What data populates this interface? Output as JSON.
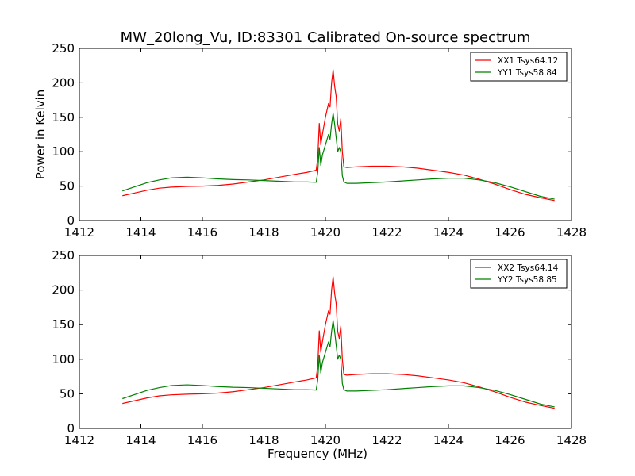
{
  "figure": {
    "title": "MW_20long_Vu, ID:83301 Calibrated On-source spectrum"
  },
  "colors": {
    "red": "#ff0000",
    "green": "#008000"
  },
  "chart_data": [
    {
      "type": "line",
      "title": "MW_20long_Vu, ID:83301 Calibrated On-source spectrum",
      "xlabel": "",
      "ylabel": "Power in Kelvin",
      "xlim": [
        1412,
        1428
      ],
      "ylim": [
        0,
        250
      ],
      "xticks": [
        "1412",
        "1414",
        "1416",
        "1418",
        "1420",
        "1422",
        "1424",
        "1426",
        "1428"
      ],
      "yticks": [
        "0",
        "50",
        "100",
        "150",
        "200",
        "250"
      ],
      "grid": false,
      "legend": "top-right",
      "series": [
        {
          "name": "XX1 Tsys64.12",
          "color": "#ff0000",
          "x": [
            1413.4,
            1413.8,
            1414.2,
            1414.6,
            1415.0,
            1415.5,
            1416.0,
            1416.5,
            1417.0,
            1417.5,
            1418.0,
            1418.5,
            1419.0,
            1419.4,
            1419.7,
            1419.75,
            1419.8,
            1419.85,
            1419.9,
            1420.0,
            1420.1,
            1420.15,
            1420.2,
            1420.25,
            1420.3,
            1420.35,
            1420.4,
            1420.45,
            1420.5,
            1420.55,
            1420.6,
            1420.7,
            1421.0,
            1421.5,
            1422.0,
            1422.5,
            1423.0,
            1423.5,
            1424.0,
            1424.5,
            1425.0,
            1425.5,
            1426.0,
            1426.5,
            1427.0,
            1427.45
          ],
          "y": [
            36,
            40,
            44,
            47,
            48.5,
            49.5,
            50,
            51,
            53,
            56,
            59,
            63,
            67,
            70,
            73,
            90,
            141,
            110,
            125,
            150,
            170,
            165,
            200,
            219,
            195,
            180,
            140,
            130,
            148,
            100,
            78,
            77,
            78,
            79,
            79,
            78,
            76,
            73,
            70,
            66,
            60,
            53,
            45,
            38,
            33,
            29
          ]
        },
        {
          "name": "YY1 Tsys58.84",
          "color": "#008000",
          "x": [
            1413.4,
            1413.8,
            1414.2,
            1414.6,
            1415.0,
            1415.5,
            1416.0,
            1416.5,
            1417.0,
            1417.5,
            1418.0,
            1418.5,
            1419.0,
            1419.4,
            1419.7,
            1419.75,
            1419.8,
            1419.85,
            1419.9,
            1420.0,
            1420.1,
            1420.15,
            1420.2,
            1420.25,
            1420.3,
            1420.35,
            1420.4,
            1420.45,
            1420.5,
            1420.55,
            1420.6,
            1420.7,
            1421.0,
            1421.5,
            1422.0,
            1422.5,
            1423.0,
            1423.5,
            1424.0,
            1424.5,
            1425.0,
            1425.5,
            1426.0,
            1426.5,
            1427.0,
            1427.45
          ],
          "y": [
            43,
            49,
            55,
            59,
            62,
            63,
            62,
            60.5,
            59.5,
            59,
            58,
            57,
            56,
            56,
            55.5,
            70,
            106,
            80,
            95,
            110,
            125,
            118,
            140,
            156,
            140,
            120,
            100,
            106,
            100,
            65,
            56,
            54,
            54,
            55,
            56,
            57.5,
            59,
            60.5,
            61.5,
            61.5,
            59,
            55,
            49,
            42,
            35,
            31
          ]
        }
      ]
    },
    {
      "type": "line",
      "title": "",
      "xlabel": "Frequency (MHz)",
      "ylabel": "",
      "xlim": [
        1412,
        1428
      ],
      "ylim": [
        0,
        250
      ],
      "xticks": [
        "1412",
        "1414",
        "1416",
        "1418",
        "1420",
        "1422",
        "1424",
        "1426",
        "1428"
      ],
      "yticks": [
        "0",
        "50",
        "100",
        "150",
        "200",
        "250"
      ],
      "grid": false,
      "legend": "top-right",
      "series": [
        {
          "name": "XX2 Tsys64.14",
          "color": "#ff0000",
          "x": [
            1413.4,
            1413.8,
            1414.2,
            1414.6,
            1415.0,
            1415.5,
            1416.0,
            1416.5,
            1417.0,
            1417.5,
            1418.0,
            1418.5,
            1419.0,
            1419.4,
            1419.7,
            1419.75,
            1419.8,
            1419.85,
            1419.9,
            1420.0,
            1420.1,
            1420.15,
            1420.2,
            1420.25,
            1420.3,
            1420.35,
            1420.4,
            1420.45,
            1420.5,
            1420.55,
            1420.6,
            1420.7,
            1421.0,
            1421.5,
            1422.0,
            1422.5,
            1423.0,
            1423.5,
            1424.0,
            1424.5,
            1425.0,
            1425.5,
            1426.0,
            1426.5,
            1427.0,
            1427.45
          ],
          "y": [
            36,
            40,
            44,
            47,
            48.5,
            49.5,
            50,
            51,
            53,
            56,
            59,
            63,
            67,
            70,
            73,
            90,
            141,
            110,
            125,
            150,
            170,
            165,
            200,
            219,
            195,
            180,
            140,
            130,
            148,
            100,
            78,
            77,
            78,
            79,
            79,
            78,
            76,
            73,
            70,
            66,
            60,
            53,
            45,
            38,
            33,
            29
          ]
        },
        {
          "name": "YY2 Tsys58.85",
          "color": "#008000",
          "x": [
            1413.4,
            1413.8,
            1414.2,
            1414.6,
            1415.0,
            1415.5,
            1416.0,
            1416.5,
            1417.0,
            1417.5,
            1418.0,
            1418.5,
            1419.0,
            1419.4,
            1419.7,
            1419.75,
            1419.8,
            1419.85,
            1419.9,
            1420.0,
            1420.1,
            1420.15,
            1420.2,
            1420.25,
            1420.3,
            1420.35,
            1420.4,
            1420.45,
            1420.5,
            1420.55,
            1420.6,
            1420.7,
            1421.0,
            1421.5,
            1422.0,
            1422.5,
            1423.0,
            1423.5,
            1424.0,
            1424.5,
            1425.0,
            1425.5,
            1426.0,
            1426.5,
            1427.0,
            1427.45
          ],
          "y": [
            43,
            49,
            55,
            59,
            62,
            63,
            62,
            60.5,
            59.5,
            59,
            58,
            57,
            56,
            56,
            55.5,
            70,
            106,
            80,
            95,
            110,
            125,
            118,
            140,
            156,
            140,
            120,
            100,
            106,
            100,
            65,
            56,
            54,
            54,
            55,
            56,
            57.5,
            59,
            60.5,
            61.5,
            61.5,
            59,
            55,
            49,
            42,
            35,
            31
          ]
        }
      ]
    }
  ]
}
